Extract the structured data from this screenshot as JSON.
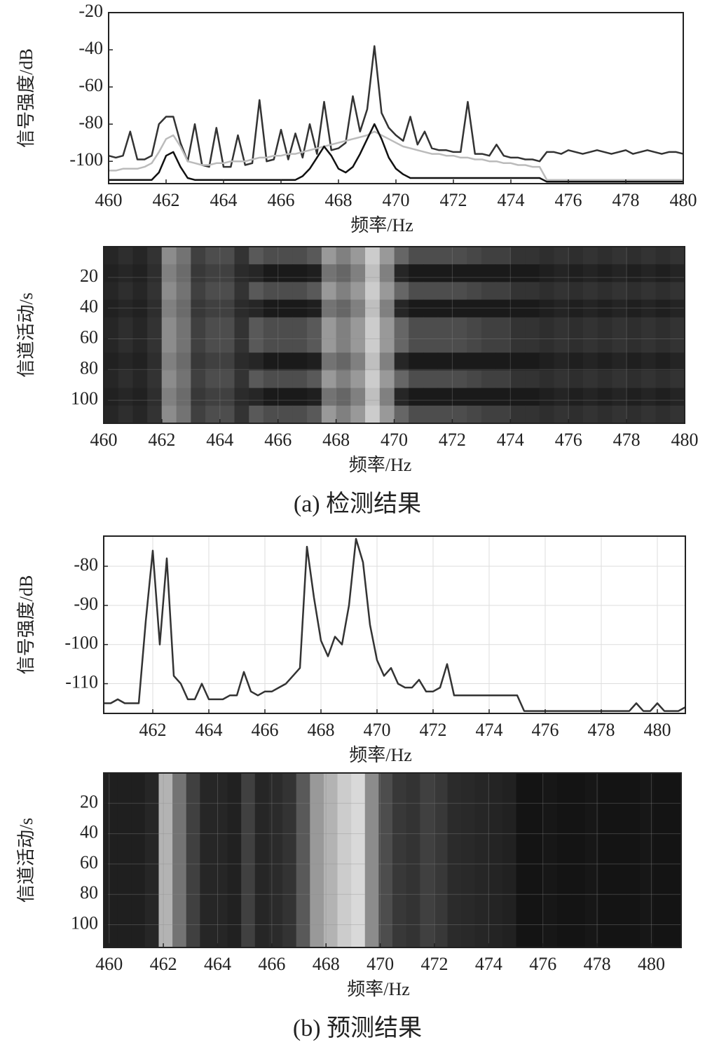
{
  "chart_data": [
    {
      "type": "line",
      "xlabel": "频率/Hz",
      "ylabel": "信号强度/dB",
      "x": [
        460,
        460.25,
        460.5,
        460.75,
        461,
        461.25,
        461.5,
        461.75,
        462,
        462.25,
        462.5,
        462.75,
        463,
        463.25,
        463.5,
        463.75,
        464,
        464.25,
        464.5,
        464.75,
        465,
        465.25,
        465.5,
        465.75,
        466,
        466.25,
        466.5,
        466.75,
        467,
        467.25,
        467.5,
        467.75,
        468,
        468.25,
        468.5,
        468.75,
        469,
        469.25,
        469.5,
        469.75,
        470,
        470.25,
        470.5,
        470.75,
        471,
        471.25,
        471.5,
        471.75,
        472,
        472.25,
        472.5,
        472.75,
        473,
        473.25,
        473.5,
        473.75,
        474,
        474.25,
        474.5,
        474.75,
        475,
        475.25,
        475.5,
        475.75,
        476,
        476.25,
        476.5,
        476.75,
        477,
        477.25,
        477.5,
        477.75,
        478,
        478.25,
        478.5,
        478.75,
        479,
        479.25,
        479.5,
        479.75,
        480
      ],
      "series": [
        {
          "color": "#333333",
          "values": [
            -97,
            -98,
            -97,
            -84,
            -99,
            -99,
            -97,
            -80,
            -76,
            -76,
            -90,
            -100,
            -80,
            -102,
            -103,
            -82,
            -103,
            -103,
            -86,
            -102,
            -101,
            -67,
            -100,
            -99,
            -83,
            -99,
            -85,
            -98,
            -80,
            -96,
            -68,
            -94,
            -93,
            -90,
            -65,
            -84,
            -72,
            -38,
            -74,
            -82,
            -86,
            -89,
            -76,
            -91,
            -84,
            -93,
            -94,
            -94,
            -95,
            -95,
            -68,
            -96,
            -96,
            -97,
            -91,
            -97,
            -98,
            -98,
            -99,
            -99,
            -100,
            -95,
            -95,
            -96,
            -94,
            -95,
            -96,
            -95,
            -94,
            -95,
            -96,
            -95,
            -94,
            -96,
            -95,
            -94,
            -95,
            -96,
            -95,
            -95,
            -96
          ]
        },
        {
          "color": "#bbbbbb",
          "values": [
            -105,
            -105,
            -104,
            -104,
            -104,
            -103,
            -101,
            -95,
            -88,
            -86,
            -92,
            -100,
            -101,
            -102,
            -102,
            -101,
            -101,
            -100,
            -100,
            -100,
            -99,
            -98,
            -98,
            -97,
            -97,
            -96,
            -96,
            -95,
            -94,
            -93,
            -92,
            -91,
            -90,
            -89,
            -88,
            -87,
            -86,
            -84,
            -86,
            -88,
            -90,
            -92,
            -93,
            -94,
            -95,
            -96,
            -96,
            -97,
            -97,
            -98,
            -98,
            -99,
            -99,
            -100,
            -100,
            -101,
            -101,
            -102,
            -102,
            -103,
            -103,
            -110,
            -110,
            -110,
            -110,
            -110,
            -110,
            -110,
            -110,
            -110,
            -110,
            -110,
            -110,
            -110,
            -110,
            -110,
            -110,
            -110,
            -110,
            -110,
            -110
          ]
        },
        {
          "color": "#111111",
          "values": [
            -110,
            -110,
            -110,
            -110,
            -110,
            -110,
            -110,
            -106,
            -97,
            -95,
            -103,
            -109,
            -110,
            -110,
            -110,
            -110,
            -110,
            -110,
            -110,
            -110,
            -110,
            -110,
            -110,
            -110,
            -110,
            -110,
            -110,
            -108,
            -104,
            -98,
            -92,
            -97,
            -104,
            -106,
            -103,
            -96,
            -88,
            -80,
            -88,
            -98,
            -104,
            -107,
            -109,
            -109,
            -109,
            -109,
            -109,
            -109,
            -109,
            -109,
            -109,
            -109,
            -109,
            -109,
            -109,
            -109,
            -109,
            -109,
            -109,
            -109,
            -109,
            -111,
            -111,
            -111,
            -111,
            -111,
            -111,
            -111,
            -111,
            -111,
            -111,
            -111,
            -111,
            -111,
            -111,
            -111,
            -111,
            -111,
            -111,
            -111,
            -111
          ]
        }
      ],
      "xlim": [
        460,
        480
      ],
      "xticks": [
        460,
        462,
        464,
        466,
        468,
        470,
        472,
        474,
        476,
        478,
        480
      ],
      "ylim": [
        -112,
        -20
      ],
      "yticks": [
        -100,
        -80,
        -60,
        -40,
        -20
      ],
      "grid": false
    },
    {
      "type": "heatmap",
      "xlabel": "频率/Hz",
      "ylabel": "信道活动/s",
      "colormap": "gray",
      "yreverse": true,
      "xlim": [
        460,
        480
      ],
      "xticks": [
        460,
        462,
        464,
        466,
        468,
        470,
        472,
        474,
        476,
        478,
        480
      ],
      "ylim": [
        0,
        115
      ],
      "yticks": [
        20,
        40,
        60,
        80,
        100
      ],
      "grid": true,
      "z": [
        [
          0.15,
          0.18,
          0.15,
          0.2,
          0.55,
          0.45,
          0.25,
          0.3,
          0.3,
          0.2,
          0.35,
          0.3,
          0.3,
          0.3,
          0.35,
          0.6,
          0.5,
          0.6,
          0.8,
          0.6,
          0.4,
          0.3,
          0.3,
          0.3,
          0.3,
          0.28,
          0.25,
          0.25,
          0.2,
          0.2,
          0.18,
          0.2,
          0.18,
          0.2,
          0.18,
          0.2,
          0.18,
          0.2,
          0.18,
          0.2
        ],
        [
          0.13,
          0.15,
          0.13,
          0.18,
          0.5,
          0.42,
          0.22,
          0.25,
          0.25,
          0.17,
          0.15,
          0.1,
          0.1,
          0.1,
          0.12,
          0.45,
          0.4,
          0.5,
          0.75,
          0.5,
          0.15,
          0.1,
          0.1,
          0.1,
          0.1,
          0.1,
          0.1,
          0.1,
          0.1,
          0.1,
          0.12,
          0.14,
          0.12,
          0.14,
          0.12,
          0.14,
          0.12,
          0.14,
          0.12,
          0.14
        ],
        [
          0.15,
          0.18,
          0.15,
          0.2,
          0.55,
          0.45,
          0.25,
          0.3,
          0.3,
          0.2,
          0.35,
          0.3,
          0.3,
          0.3,
          0.35,
          0.6,
          0.5,
          0.6,
          0.8,
          0.6,
          0.4,
          0.3,
          0.3,
          0.3,
          0.3,
          0.28,
          0.25,
          0.25,
          0.2,
          0.2,
          0.18,
          0.2,
          0.18,
          0.2,
          0.18,
          0.2,
          0.18,
          0.2,
          0.18,
          0.2
        ],
        [
          0.13,
          0.15,
          0.13,
          0.18,
          0.5,
          0.42,
          0.22,
          0.25,
          0.25,
          0.17,
          0.15,
          0.1,
          0.1,
          0.1,
          0.12,
          0.45,
          0.4,
          0.5,
          0.75,
          0.5,
          0.15,
          0.1,
          0.1,
          0.1,
          0.1,
          0.1,
          0.1,
          0.1,
          0.1,
          0.1,
          0.12,
          0.14,
          0.12,
          0.14,
          0.12,
          0.14,
          0.12,
          0.14,
          0.12,
          0.14
        ],
        [
          0.15,
          0.18,
          0.15,
          0.2,
          0.55,
          0.45,
          0.25,
          0.3,
          0.3,
          0.2,
          0.35,
          0.3,
          0.3,
          0.3,
          0.35,
          0.6,
          0.5,
          0.6,
          0.8,
          0.6,
          0.4,
          0.3,
          0.3,
          0.3,
          0.3,
          0.28,
          0.25,
          0.25,
          0.2,
          0.2,
          0.18,
          0.2,
          0.18,
          0.2,
          0.18,
          0.2,
          0.18,
          0.2,
          0.18,
          0.2
        ],
        [
          0.15,
          0.18,
          0.15,
          0.2,
          0.55,
          0.45,
          0.25,
          0.3,
          0.3,
          0.2,
          0.35,
          0.3,
          0.3,
          0.3,
          0.35,
          0.6,
          0.5,
          0.6,
          0.8,
          0.6,
          0.4,
          0.3,
          0.3,
          0.3,
          0.3,
          0.28,
          0.25,
          0.25,
          0.2,
          0.2,
          0.18,
          0.2,
          0.18,
          0.2,
          0.18,
          0.2,
          0.18,
          0.2,
          0.18,
          0.2
        ],
        [
          0.13,
          0.15,
          0.13,
          0.18,
          0.5,
          0.42,
          0.22,
          0.25,
          0.25,
          0.17,
          0.15,
          0.1,
          0.1,
          0.1,
          0.12,
          0.45,
          0.4,
          0.5,
          0.75,
          0.5,
          0.15,
          0.1,
          0.1,
          0.1,
          0.1,
          0.1,
          0.1,
          0.1,
          0.1,
          0.1,
          0.12,
          0.14,
          0.12,
          0.14,
          0.12,
          0.14,
          0.12,
          0.14,
          0.12,
          0.14
        ],
        [
          0.15,
          0.18,
          0.15,
          0.2,
          0.55,
          0.45,
          0.25,
          0.3,
          0.3,
          0.2,
          0.35,
          0.3,
          0.3,
          0.3,
          0.35,
          0.6,
          0.5,
          0.6,
          0.8,
          0.6,
          0.4,
          0.3,
          0.3,
          0.3,
          0.3,
          0.28,
          0.25,
          0.25,
          0.2,
          0.2,
          0.18,
          0.2,
          0.18,
          0.2,
          0.18,
          0.2,
          0.18,
          0.2,
          0.18,
          0.2
        ],
        [
          0.13,
          0.15,
          0.13,
          0.18,
          0.5,
          0.42,
          0.22,
          0.25,
          0.25,
          0.17,
          0.15,
          0.1,
          0.1,
          0.1,
          0.12,
          0.45,
          0.4,
          0.5,
          0.75,
          0.5,
          0.15,
          0.1,
          0.1,
          0.1,
          0.1,
          0.1,
          0.1,
          0.1,
          0.1,
          0.1,
          0.12,
          0.14,
          0.12,
          0.14,
          0.12,
          0.14,
          0.12,
          0.14,
          0.12,
          0.14
        ],
        [
          0.15,
          0.18,
          0.15,
          0.2,
          0.55,
          0.45,
          0.25,
          0.3,
          0.3,
          0.2,
          0.35,
          0.3,
          0.3,
          0.3,
          0.35,
          0.6,
          0.5,
          0.6,
          0.8,
          0.6,
          0.4,
          0.3,
          0.3,
          0.3,
          0.3,
          0.28,
          0.25,
          0.25,
          0.2,
          0.2,
          0.18,
          0.2,
          0.18,
          0.2,
          0.18,
          0.2,
          0.18,
          0.2,
          0.18,
          0.2
        ]
      ]
    },
    {
      "type": "line",
      "xlabel": "频率/Hz",
      "ylabel": "信号强度/dB",
      "x": [
        460.25,
        460.5,
        460.75,
        461,
        461.25,
        461.5,
        461.75,
        462,
        462.25,
        462.5,
        462.75,
        463,
        463.25,
        463.5,
        463.75,
        464,
        464.25,
        464.5,
        464.75,
        465,
        465.25,
        465.5,
        465.75,
        466,
        466.25,
        466.5,
        466.75,
        467,
        467.25,
        467.5,
        467.75,
        468,
        468.25,
        468.5,
        468.75,
        469,
        469.25,
        469.5,
        469.75,
        470,
        470.25,
        470.5,
        470.75,
        471,
        471.25,
        471.5,
        471.75,
        472,
        472.25,
        472.5,
        472.75,
        473,
        473.25,
        473.5,
        473.75,
        474,
        474.25,
        474.5,
        474.75,
        475,
        475.25,
        475.5,
        475.75,
        476,
        476.25,
        476.5,
        476.75,
        477,
        477.25,
        477.5,
        477.75,
        478,
        478.25,
        478.5,
        478.75,
        479,
        479.25,
        479.5,
        479.75,
        480,
        480.25,
        480.5,
        480.75,
        481
      ],
      "series": [
        {
          "color": "#333333",
          "values": [
            -115,
            -115,
            -114,
            -115,
            -115,
            -115,
            -94,
            -76,
            -100,
            -78,
            -108,
            -110,
            -114,
            -114,
            -110,
            -114,
            -114,
            -114,
            -113,
            -113,
            -107,
            -112,
            -113,
            -112,
            -112,
            -111,
            -110,
            -108,
            -106,
            -75,
            -88,
            -99,
            -103,
            -98,
            -100,
            -90,
            -73,
            -79,
            -95,
            -104,
            -108,
            -106,
            -110,
            -111,
            -111,
            -109,
            -112,
            -112,
            -111,
            -105,
            -113,
            -113,
            -113,
            -113,
            -113,
            -113,
            -113,
            -113,
            -113,
            -113,
            -117,
            -117,
            -117,
            -117,
            -117,
            -117,
            -117,
            -117,
            -117,
            -117,
            -117,
            -117,
            -117,
            -117,
            -117,
            -117,
            -115,
            -117,
            -117,
            -115,
            -117,
            -117,
            -117,
            -116
          ]
        }
      ],
      "xlim": [
        460.25,
        481
      ],
      "xticks": [
        462,
        464,
        466,
        468,
        470,
        472,
        474,
        476,
        478,
        480
      ],
      "ylim": [
        -117.6,
        -72.3
      ],
      "yticks": [
        -110,
        -100,
        -90,
        -80
      ],
      "grid": true
    },
    {
      "type": "heatmap",
      "xlabel": "频率/Hz",
      "ylabel": "信道活动/s",
      "colormap": "gray",
      "yreverse": true,
      "xlim": [
        459.8,
        481.1
      ],
      "xticks": [
        460,
        462,
        464,
        466,
        468,
        470,
        472,
        474,
        476,
        478,
        480
      ],
      "ylim": [
        0,
        115
      ],
      "yticks": [
        20,
        40,
        60,
        80,
        100
      ],
      "grid": true,
      "z": [
        [
          0.12,
          0.12,
          0.12,
          0.15,
          0.7,
          0.45,
          0.25,
          0.15,
          0.15,
          0.13,
          0.25,
          0.15,
          0.17,
          0.2,
          0.35,
          0.6,
          0.7,
          0.8,
          0.85,
          0.55,
          0.3,
          0.22,
          0.2,
          0.25,
          0.22,
          0.17,
          0.16,
          0.15,
          0.14,
          0.13,
          0.08,
          0.08,
          0.09,
          0.08,
          0.08,
          0.09,
          0.08,
          0.08,
          0.08,
          0.09,
          0.08,
          0.08
        ]
      ]
    }
  ],
  "captions": [
    "(a) 检测结果",
    "(b) 预测结果"
  ]
}
